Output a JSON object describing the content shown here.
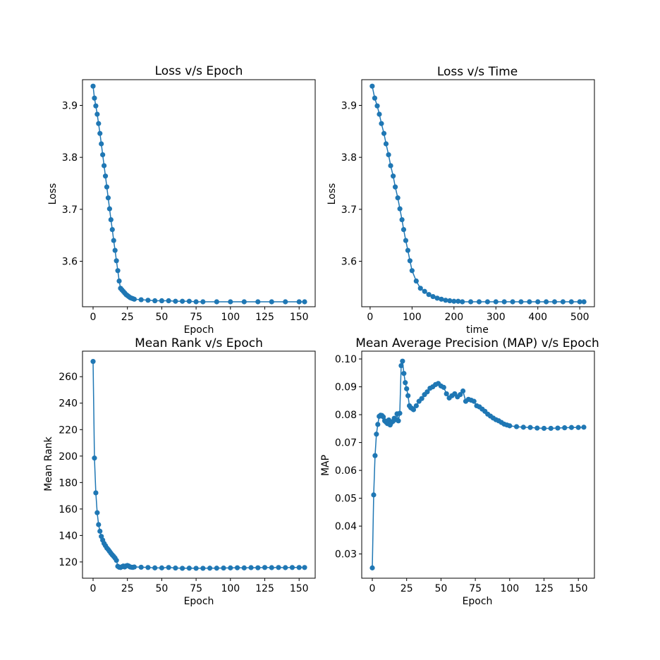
{
  "figure": {
    "background": "#ffffff",
    "series_color": "#1f77b4"
  },
  "chart_data": [
    {
      "type": "line",
      "title": "Loss v/s Epoch",
      "xlabel": "Epoch",
      "ylabel": "Loss",
      "xlim": [
        -7.7,
        161.7
      ],
      "ylim": [
        3.5125,
        3.9495
      ],
      "xticks": [
        0,
        25,
        50,
        75,
        100,
        125,
        150
      ],
      "yticks": [
        3.6,
        3.7,
        3.8,
        3.9
      ],
      "ytick_decimals": 1,
      "grid": false,
      "series": [
        {
          "marker": "circle",
          "x": [
            0,
            1,
            2,
            3,
            4,
            5,
            6,
            7,
            8,
            9,
            10,
            11,
            12,
            13,
            14,
            15,
            16,
            17,
            18,
            19,
            20,
            21,
            22,
            23,
            24,
            25,
            26,
            27,
            28,
            29,
            30,
            35,
            40,
            45,
            50,
            55,
            60,
            65,
            70,
            75,
            80,
            90,
            100,
            110,
            120,
            130,
            140,
            150,
            154
          ],
          "y": [
            3.937,
            3.914,
            3.899,
            3.883,
            3.865,
            3.846,
            3.826,
            3.805,
            3.784,
            3.764,
            3.743,
            3.722,
            3.701,
            3.68,
            3.661,
            3.64,
            3.621,
            3.601,
            3.582,
            3.562,
            3.548,
            3.545,
            3.542,
            3.539,
            3.536,
            3.534,
            3.532,
            3.53,
            3.529,
            3.528,
            3.527,
            3.526,
            3.525,
            3.524,
            3.524,
            3.524,
            3.523,
            3.523,
            3.523,
            3.522,
            3.522,
            3.522,
            3.522,
            3.522,
            3.522,
            3.522,
            3.522,
            3.522,
            3.522
          ]
        }
      ]
    },
    {
      "type": "line",
      "title": "Loss v/s Time",
      "xlabel": "time",
      "ylabel": "Loss",
      "xlim": [
        -20,
        535
      ],
      "ylim": [
        3.5125,
        3.9495
      ],
      "xticks": [
        0,
        100,
        200,
        300,
        400,
        500
      ],
      "yticks": [
        3.6,
        3.7,
        3.8,
        3.9
      ],
      "ytick_decimals": 1,
      "grid": false,
      "series": [
        {
          "marker": "circle",
          "x": [
            5,
            11,
            17,
            22,
            27,
            33,
            38,
            44,
            49,
            55,
            60,
            66,
            71,
            76,
            80,
            85,
            90,
            95,
            100,
            110,
            120,
            130,
            140,
            150,
            160,
            170,
            180,
            190,
            200,
            210,
            220,
            240,
            260,
            280,
            300,
            320,
            340,
            360,
            380,
            400,
            420,
            440,
            460,
            480,
            500,
            510
          ],
          "y": [
            3.937,
            3.914,
            3.899,
            3.883,
            3.865,
            3.846,
            3.826,
            3.805,
            3.784,
            3.764,
            3.743,
            3.722,
            3.701,
            3.68,
            3.661,
            3.64,
            3.621,
            3.601,
            3.582,
            3.562,
            3.548,
            3.542,
            3.536,
            3.532,
            3.529,
            3.527,
            3.525,
            3.524,
            3.523,
            3.523,
            3.522,
            3.522,
            3.522,
            3.522,
            3.522,
            3.522,
            3.522,
            3.522,
            3.522,
            3.522,
            3.522,
            3.522,
            3.522,
            3.522,
            3.522,
            3.522
          ]
        }
      ]
    },
    {
      "type": "line",
      "title": "Mean Rank v/s Epoch",
      "xlabel": "Epoch",
      "ylabel": "Mean Rank",
      "xlim": [
        -7.7,
        161.7
      ],
      "ylim": [
        107.7,
        279.3
      ],
      "xticks": [
        0,
        25,
        50,
        75,
        100,
        125,
        150
      ],
      "yticks": [
        120,
        140,
        160,
        180,
        200,
        220,
        240,
        260
      ],
      "ytick_decimals": 0,
      "grid": false,
      "series": [
        {
          "marker": "circle",
          "x": [
            0,
            1,
            2,
            3,
            4,
            5,
            6,
            7,
            8,
            9,
            10,
            11,
            12,
            13,
            14,
            15,
            16,
            17,
            18,
            19,
            20,
            21,
            22,
            23,
            24,
            25,
            26,
            27,
            28,
            29,
            30,
            35,
            40,
            45,
            50,
            55,
            60,
            65,
            70,
            75,
            80,
            85,
            90,
            95,
            100,
            105,
            110,
            115,
            120,
            125,
            130,
            135,
            140,
            145,
            150,
            154
          ],
          "y": [
            271.5,
            198.5,
            172.2,
            157.2,
            148.2,
            143.2,
            139.3,
            136.5,
            134.0,
            132.3,
            130.6,
            129.4,
            128.0,
            126.6,
            125.3,
            124.2,
            122.9,
            121.2,
            116.7,
            116.0,
            115.8,
            116.4,
            116.9,
            116.2,
            117.0,
            117.3,
            116.9,
            116.2,
            116.0,
            115.9,
            116.2,
            116.0,
            115.8,
            115.5,
            115.5,
            115.8,
            115.4,
            115.2,
            115.3,
            115.2,
            115.2,
            115.3,
            115.3,
            115.4,
            115.5,
            115.6,
            115.5,
            115.7,
            115.6,
            115.8,
            115.7,
            115.8,
            115.7,
            115.8,
            115.8,
            115.8
          ]
        }
      ]
    },
    {
      "type": "line",
      "title": "Mean Average Precision (MAP) v/s Epoch",
      "xlabel": "Epoch",
      "ylabel": "MAP",
      "xlim": [
        -7.7,
        161.7
      ],
      "ylim": [
        0.0213,
        0.1028
      ],
      "xticks": [
        0,
        25,
        50,
        75,
        100,
        125,
        150
      ],
      "yticks": [
        0.03,
        0.04,
        0.05,
        0.06,
        0.07,
        0.08,
        0.09,
        0.1
      ],
      "ytick_decimals": 2,
      "grid": false,
      "series": [
        {
          "marker": "circle",
          "x": [
            0,
            1,
            2,
            3,
            4,
            5,
            6,
            7,
            8,
            9,
            10,
            11,
            12,
            13,
            14,
            15,
            16,
            17,
            18,
            19,
            20,
            21,
            22,
            23,
            24,
            25,
            26,
            27,
            28,
            29,
            30,
            32,
            34,
            36,
            38,
            40,
            42,
            44,
            46,
            48,
            50,
            52,
            54,
            56,
            58,
            60,
            62,
            64,
            66,
            68,
            70,
            72,
            74,
            76,
            78,
            80,
            82,
            84,
            86,
            88,
            90,
            92,
            94,
            96,
            98,
            100,
            105,
            110,
            115,
            120,
            125,
            130,
            135,
            140,
            145,
            150,
            154
          ],
          "y": [
            0.025,
            0.0512,
            0.0653,
            0.073,
            0.0765,
            0.0794,
            0.0798,
            0.0797,
            0.0792,
            0.0778,
            0.0773,
            0.0768,
            0.0781,
            0.0763,
            0.0772,
            0.0776,
            0.0787,
            0.0782,
            0.0803,
            0.0778,
            0.0805,
            0.0976,
            0.0992,
            0.0948,
            0.0915,
            0.0893,
            0.0868,
            0.0832,
            0.0825,
            0.0822,
            0.0818,
            0.0832,
            0.0848,
            0.0858,
            0.0872,
            0.0882,
            0.0895,
            0.09,
            0.0908,
            0.0912,
            0.0903,
            0.0898,
            0.0875,
            0.086,
            0.0868,
            0.0875,
            0.0864,
            0.0872,
            0.0885,
            0.0848,
            0.0855,
            0.0852,
            0.0848,
            0.0832,
            0.0828,
            0.082,
            0.0812,
            0.0802,
            0.0795,
            0.0788,
            0.0782,
            0.0778,
            0.0772,
            0.0766,
            0.0763,
            0.076,
            0.0757,
            0.0755,
            0.0754,
            0.0752,
            0.0751,
            0.0751,
            0.0752,
            0.0753,
            0.0754,
            0.0754,
            0.0755
          ]
        }
      ]
    }
  ]
}
